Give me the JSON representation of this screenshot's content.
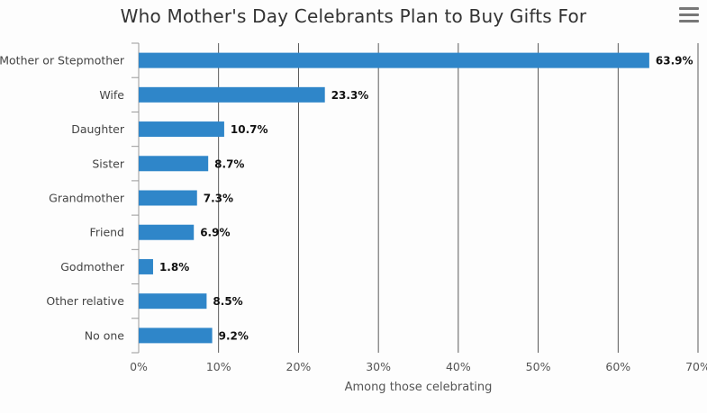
{
  "chart_data": {
    "type": "bar",
    "orientation": "horizontal",
    "title": "Who Mother's Day Celebrants Plan to Buy Gifts For",
    "categories": [
      "Mother or Stepmother",
      "Wife",
      "Daughter",
      "Sister",
      "Grandmother",
      "Friend",
      "Godmother",
      "Other relative",
      "No one"
    ],
    "values": [
      63.9,
      23.3,
      10.7,
      8.7,
      7.3,
      6.9,
      1.8,
      8.5,
      9.2
    ],
    "data_labels": [
      "63.9%",
      "23.3%",
      "10.7%",
      "8.7%",
      "7.3%",
      "6.9%",
      "1.8%",
      "8.5%",
      "9.2%"
    ],
    "xlabel": "Among those celebrating",
    "ylabel": "",
    "xlim": [
      0,
      70
    ],
    "ticks": [
      0,
      10,
      20,
      30,
      40,
      50,
      60,
      70
    ],
    "tick_labels": [
      "0%",
      "10%",
      "20%",
      "30%",
      "40%",
      "50%",
      "60%",
      "70%"
    ],
    "grid": true,
    "legend": "none",
    "colors": {
      "bar": "#2f86c9",
      "grid": "#333333"
    }
  },
  "menu": {
    "icon": "hamburger-menu-icon"
  }
}
